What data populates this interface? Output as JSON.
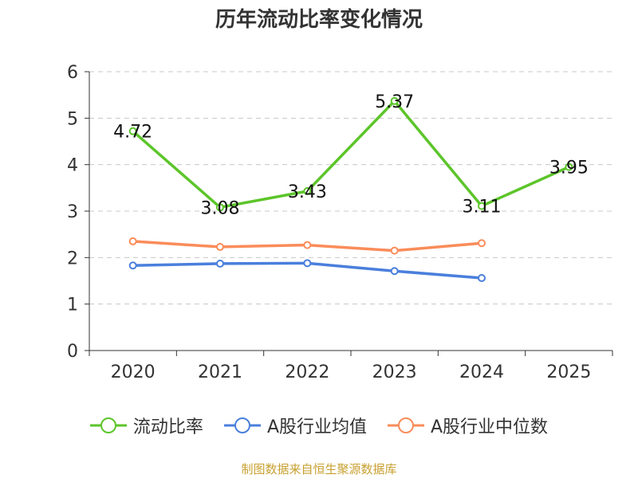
{
  "chart_data": {
    "type": "line",
    "title": "历年流动比率变化情况",
    "categories": [
      "2020",
      "2021",
      "2022",
      "2023",
      "2024",
      "2025"
    ],
    "ylim": [
      0,
      6
    ],
    "yticks": [
      0,
      1,
      2,
      3,
      4,
      5,
      6
    ],
    "grid": true,
    "legend_position": "bottom",
    "series": [
      {
        "name": "流动比率",
        "color": "#5cc52a",
        "values": [
          4.72,
          3.08,
          3.43,
          5.37,
          3.11,
          3.95
        ],
        "labels": [
          "4.72",
          "3.08",
          "3.43",
          "5.37",
          "3.11",
          "3.95"
        ],
        "show_labels": true
      },
      {
        "name": "A股行业均值",
        "color": "#4a7fdc",
        "values": [
          1.83,
          1.87,
          1.88,
          1.71,
          1.56,
          null
        ],
        "show_labels": false
      },
      {
        "name": "A股行业中位数",
        "color": "#fa8c5a",
        "values": [
          2.35,
          2.23,
          2.27,
          2.15,
          2.31,
          null
        ],
        "show_labels": false
      }
    ]
  },
  "source_text": "制图数据来自恒生聚源数据库"
}
